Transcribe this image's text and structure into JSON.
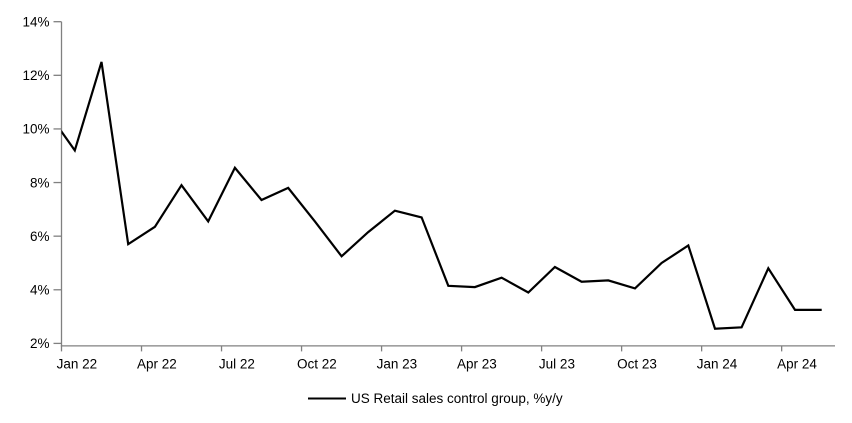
{
  "chart_data": {
    "type": "line",
    "title": "",
    "xlabel": "",
    "ylabel": "",
    "legend": "US Retail sales control group, %y/y",
    "legend_position": "bottom-center",
    "grid": false,
    "categories": [
      "Jan 22",
      "Feb 22",
      "Mar 22",
      "Apr 22",
      "May 22",
      "Jun 22",
      "Jul 22",
      "Aug 22",
      "Sep 22",
      "Oct 22",
      "Nov 22",
      "Dec 22",
      "Jan 23",
      "Feb 23",
      "Mar 23",
      "Apr 23",
      "May 23",
      "Jun 23",
      "Jul 23",
      "Aug 23",
      "Sep 23",
      "Oct 23",
      "Nov 23",
      "Dec 23",
      "Jan 24",
      "Feb 24",
      "Mar 24",
      "Apr 24",
      "May 24"
    ],
    "values": [
      9.2,
      12.5,
      5.7,
      6.35,
      7.9,
      6.55,
      8.55,
      7.35,
      7.8,
      6.55,
      5.25,
      6.15,
      6.95,
      6.7,
      4.15,
      4.1,
      4.45,
      3.9,
      4.85,
      4.3,
      4.35,
      4.05,
      5.0,
      5.65,
      2.55,
      2.6,
      4.8,
      3.25,
      3.25
    ],
    "clipped_lead_in": {
      "value": 10.6
    },
    "x_tick_labels": [
      "Jan 22",
      "Apr 22",
      "Jul 22",
      "Oct 22",
      "Jan 23",
      "Apr 23",
      "Jul 23",
      "Oct 23",
      "Jan 24",
      "Apr 24"
    ],
    "x_tick_step_months": 3,
    "y_ticks": [
      2,
      4,
      6,
      8,
      10,
      12,
      14
    ],
    "y_tick_suffix": "%",
    "ylim": [
      2,
      14
    ],
    "colors": {
      "line": "#000000",
      "axis": "#808080",
      "text": "#000000",
      "background": "#ffffff"
    }
  }
}
